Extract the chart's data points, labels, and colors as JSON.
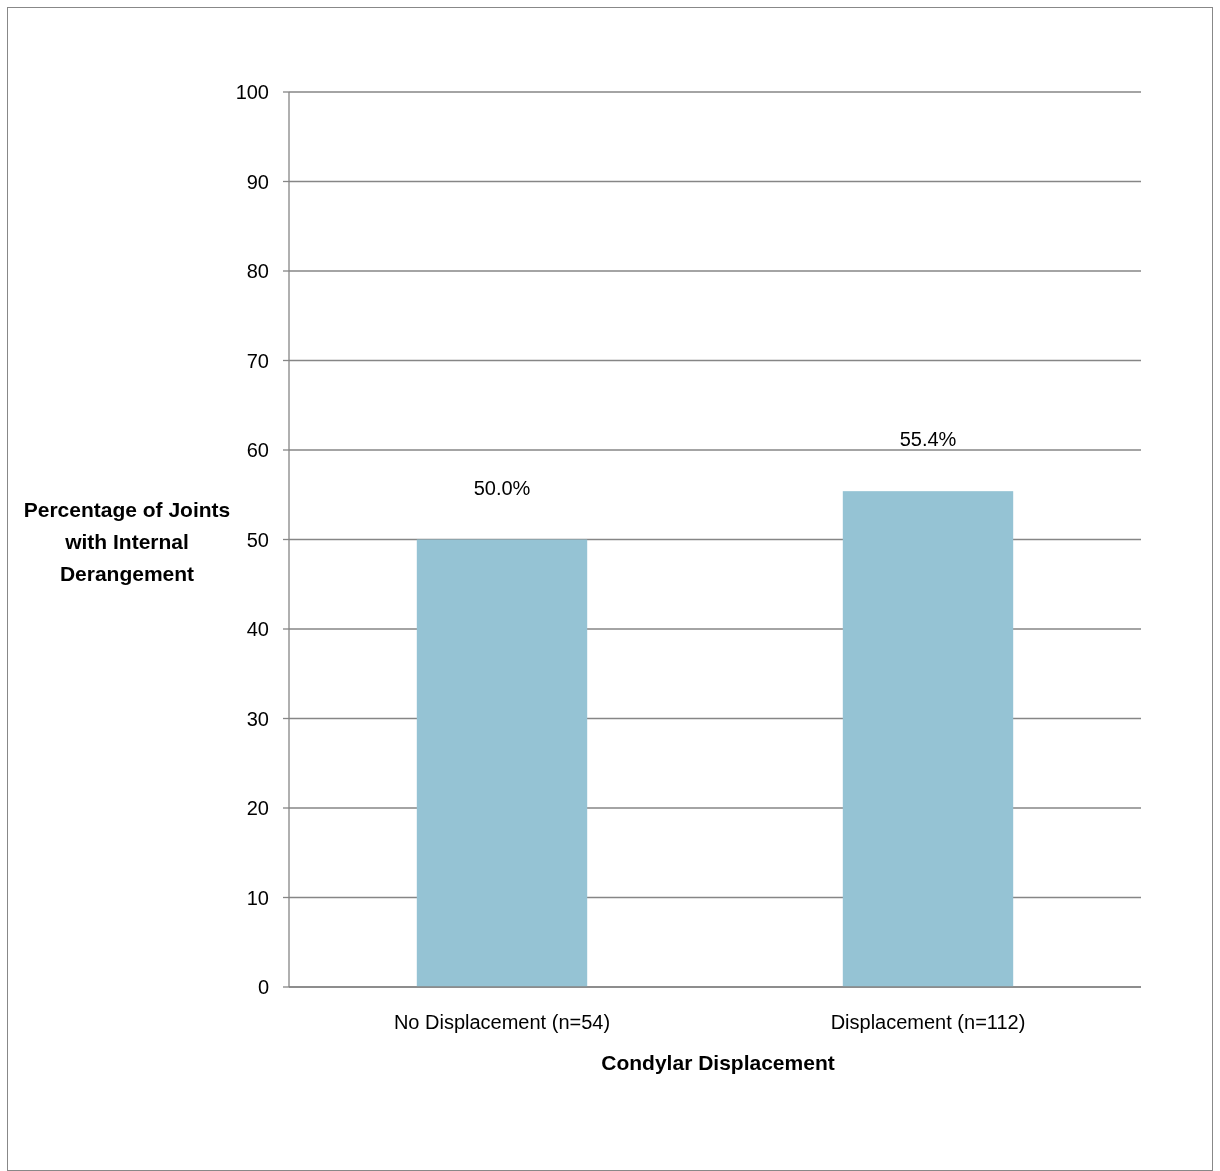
{
  "chart_data": {
    "type": "bar",
    "xlabel": "Condylar Displacement",
    "ylabel": "Percentage of Joints with Internal Derangement",
    "categories": [
      "No Displacement (n=54)",
      "Displacement (n=112)"
    ],
    "values": [
      50.0,
      55.4
    ],
    "value_labels": [
      "50.0%",
      "55.4%"
    ],
    "color": "#95c3d4",
    "ylim": [
      0,
      100
    ],
    "yticks": [
      0,
      10,
      20,
      30,
      40,
      50,
      60,
      70,
      80,
      90,
      100
    ],
    "grid": "y"
  }
}
